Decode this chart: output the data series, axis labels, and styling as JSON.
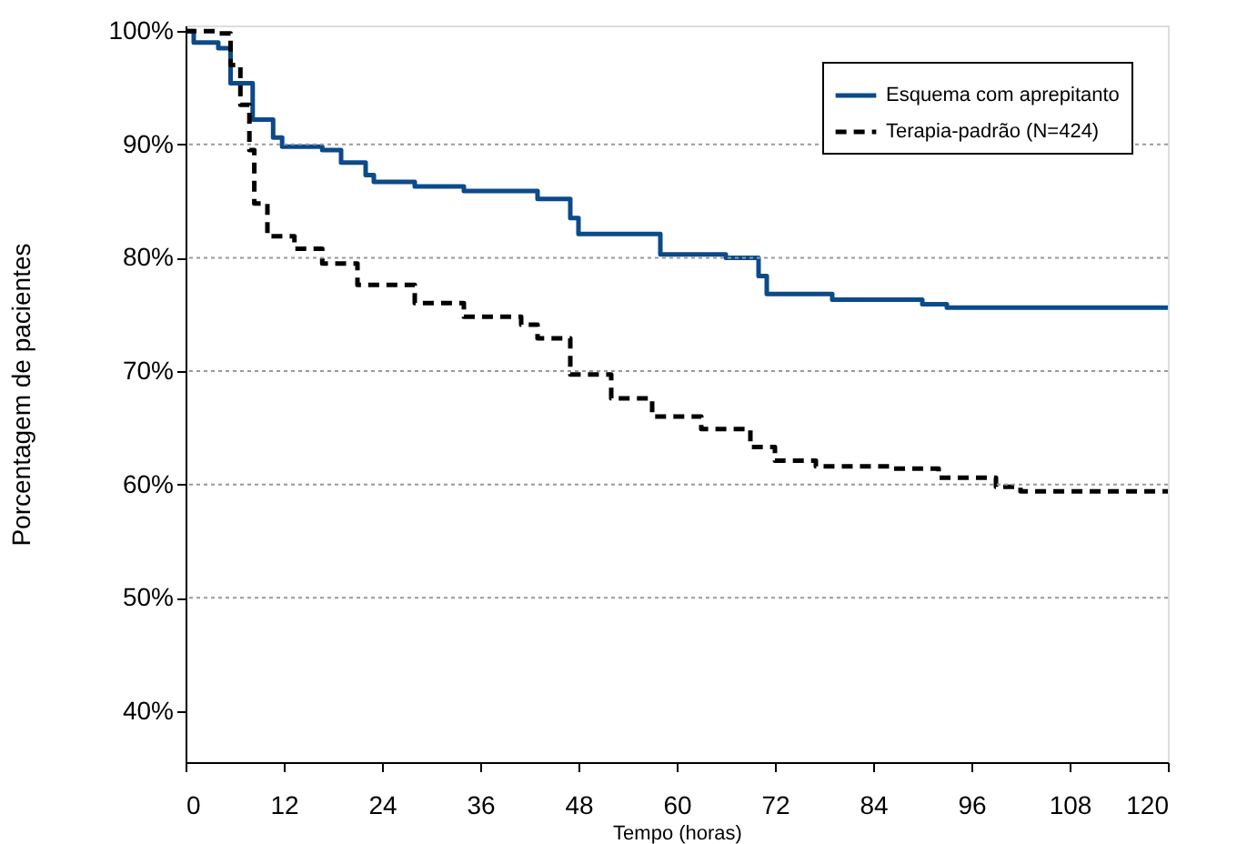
{
  "chart_data": {
    "type": "step",
    "xlabel": "Tempo (horas)",
    "ylabel": "Porcentagem de pacientes",
    "xlim": [
      0,
      120
    ],
    "xticks": [
      0,
      12,
      24,
      36,
      48,
      60,
      72,
      84,
      96,
      108,
      120
    ],
    "ylim": [
      35.5,
      100.5
    ],
    "yticks": [
      {
        "value": 40,
        "label": "40%"
      },
      {
        "value": 50,
        "label": "50%"
      },
      {
        "value": 60,
        "label": "60%"
      },
      {
        "value": 70,
        "label": "70%"
      },
      {
        "value": 80,
        "label": "80%"
      },
      {
        "value": 90,
        "label": "90%"
      },
      {
        "value": 100,
        "label": "100%"
      }
    ],
    "legend": "top right",
    "grid": false,
    "ref_lines": [
      {
        "axis": "y",
        "value": 50,
        "color": "#999999",
        "line_style": "dotted"
      },
      {
        "axis": "y",
        "value": 60,
        "color": "#999999",
        "line_style": "dotted"
      },
      {
        "axis": "y",
        "value": 70,
        "color": "#999999",
        "line_style": "dotted"
      },
      {
        "axis": "y",
        "value": 80,
        "color": "#999999",
        "line_style": "dotted"
      },
      {
        "axis": "y",
        "value": 90,
        "color": "#999999",
        "line_style": "dotted"
      }
    ],
    "series": [
      {
        "name": "Esquema com aprepitanto",
        "color": "#0b4a8b",
        "line_style": "solid",
        "x": [
          0,
          1,
          4,
          5.5,
          8.2,
          10.7,
          11.8,
          16.7,
          19,
          22,
          23,
          28,
          34,
          43,
          47,
          48,
          54,
          58,
          66,
          70,
          71,
          79,
          90,
          93,
          120
        ],
        "values": [
          100,
          99,
          98.5,
          95.4,
          92.2,
          90.6,
          89.8,
          89.5,
          88.4,
          87.3,
          86.7,
          86.3,
          85.9,
          85.2,
          83.5,
          82.1,
          82.1,
          80.3,
          80.0,
          78.4,
          76.8,
          76.3,
          75.9,
          75.6,
          75.6
        ]
      },
      {
        "name": "Terapia-padrão (N=424)",
        "color": "#000000",
        "line_style": "dashed",
        "x": [
          0,
          3.8,
          5.5,
          6.7,
          7.8,
          8.4,
          10,
          13.3,
          16.7,
          21,
          28,
          34,
          41,
          43,
          47,
          52,
          57,
          63,
          69,
          72,
          77,
          86,
          92,
          99,
          102,
          120
        ],
        "values": [
          100,
          99.8,
          97,
          93.5,
          89.5,
          84.8,
          81.9,
          80.8,
          79.5,
          77.6,
          76.0,
          74.8,
          74.1,
          72.9,
          69.7,
          67.6,
          66.0,
          64.9,
          63.3,
          62.1,
          61.6,
          61.4,
          60.6,
          59.8,
          59.4,
          59.4
        ]
      }
    ]
  }
}
